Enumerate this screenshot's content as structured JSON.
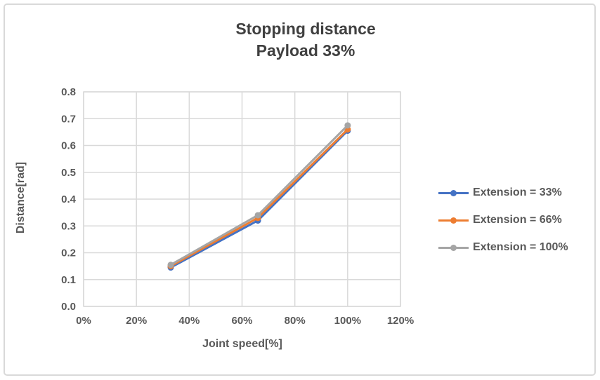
{
  "chart_data": {
    "type": "line",
    "title": "Stopping distance",
    "subtitle": "Payload 33%",
    "xlabel": "Joint speed[%]",
    "ylabel": "Distance[rad]",
    "xlim": [
      0,
      120
    ],
    "ylim": [
      0,
      0.8
    ],
    "grid": true,
    "legend_position": "right",
    "x_ticks": [
      {
        "value": 0,
        "label": "0%"
      },
      {
        "value": 20,
        "label": "20%"
      },
      {
        "value": 40,
        "label": "40%"
      },
      {
        "value": 60,
        "label": "60%"
      },
      {
        "value": 80,
        "label": "80%"
      },
      {
        "value": 100,
        "label": "100%"
      },
      {
        "value": 120,
        "label": "120%"
      }
    ],
    "y_ticks": [
      {
        "value": 0.0,
        "label": "0.0"
      },
      {
        "value": 0.1,
        "label": "0.1"
      },
      {
        "value": 0.2,
        "label": "0.2"
      },
      {
        "value": 0.3,
        "label": "0.3"
      },
      {
        "value": 0.4,
        "label": "0.4"
      },
      {
        "value": 0.5,
        "label": "0.5"
      },
      {
        "value": 0.6,
        "label": "0.6"
      },
      {
        "value": 0.7,
        "label": "0.7"
      },
      {
        "value": 0.8,
        "label": "0.8"
      }
    ],
    "x": [
      33,
      66,
      100
    ],
    "series": [
      {
        "name": "Extension = 33%",
        "color": "#4472C4",
        "values": [
          0.145,
          0.32,
          0.655
        ]
      },
      {
        "name": "Extension = 66%",
        "color": "#ED7D31",
        "values": [
          0.15,
          0.33,
          0.66
        ]
      },
      {
        "name": "Extension = 100%",
        "color": "#A5A5A5",
        "values": [
          0.155,
          0.34,
          0.675
        ]
      }
    ]
  },
  "colors": {
    "gridline": "#D9D9D9",
    "plot_border": "#D9D9D9",
    "tick_text": "#595959",
    "title_text": "#404040",
    "frame_border": "#D9D9D9"
  }
}
